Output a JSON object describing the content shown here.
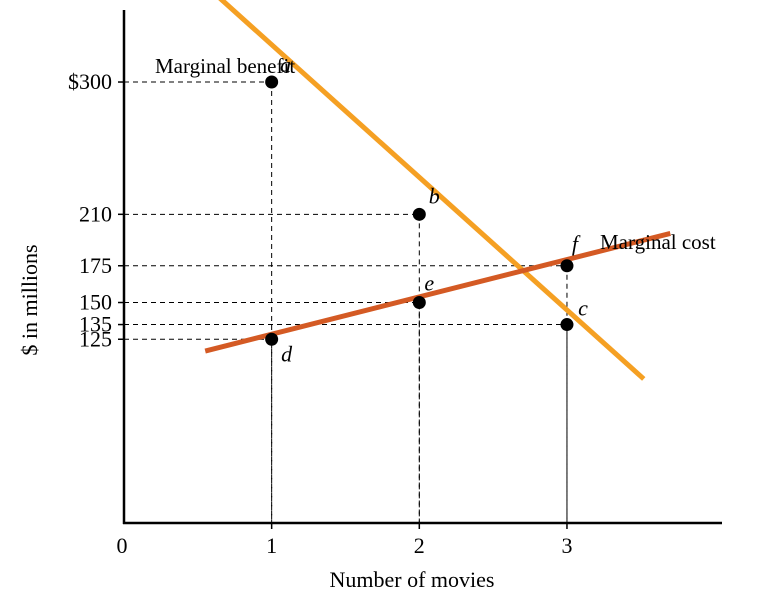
{
  "chart_data": {
    "type": "line",
    "xlabel": "Number of movies",
    "ylabel": "$ in millions",
    "x_origin_label": "0",
    "xlim": [
      0,
      4.05
    ],
    "ylim": [
      0,
      349
    ],
    "grid": false,
    "x_ticks": [
      {
        "value": 1,
        "label": "1"
      },
      {
        "value": 2,
        "label": "2"
      },
      {
        "value": 3,
        "label": "3"
      }
    ],
    "y_ticks": [
      {
        "value": 300,
        "label": "$300"
      },
      {
        "value": 210,
        "label": "210"
      },
      {
        "value": 175,
        "label": "175"
      },
      {
        "value": 150,
        "label": "150"
      },
      {
        "value": 135,
        "label": "135"
      },
      {
        "value": 125,
        "label": "125"
      }
    ],
    "series": [
      {
        "name": "Marginal benefit",
        "color": "#f5a023",
        "line": [
          [
            0.65,
            357
          ],
          [
            3.52,
            98
          ]
        ],
        "points": [
          {
            "label": "a",
            "x": 1,
            "y": 300
          },
          {
            "label": "b",
            "x": 2,
            "y": 210
          },
          {
            "label": "c",
            "x": 3,
            "y": 135
          }
        ]
      },
      {
        "name": "Marginal cost",
        "color": "#d45a24",
        "line": [
          [
            0.55,
            117
          ],
          [
            3.7,
            197
          ]
        ],
        "points": [
          {
            "label": "d",
            "x": 1,
            "y": 125
          },
          {
            "label": "e",
            "x": 2,
            "y": 150
          },
          {
            "label": "f",
            "x": 3,
            "y": 175
          }
        ]
      }
    ]
  }
}
